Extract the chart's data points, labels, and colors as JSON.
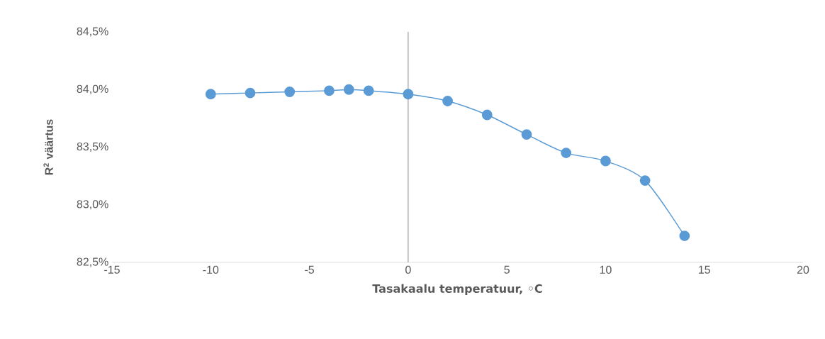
{
  "chart_data": {
    "type": "line",
    "xlabel": "Tasakaalu temperatuur, ◦C",
    "ylabel": "R$^{2}$ väärtus",
    "x": [
      -10,
      -8,
      -6,
      -4,
      -3,
      -2,
      0,
      2,
      4,
      6,
      8,
      10,
      12,
      14
    ],
    "series": [
      {
        "color": "#5b9bd5",
        "values": [
          83.96,
          83.97,
          83.98,
          83.99,
          84.0,
          83.99,
          83.96,
          83.9,
          83.78,
          83.61,
          83.45,
          83.38,
          83.21,
          82.73
        ]
      }
    ],
    "xlim": [
      -15,
      20
    ],
    "xticks": [
      -15,
      -10,
      -5,
      0,
      5,
      10,
      15,
      20
    ],
    "ylim": [
      82.5,
      84.5
    ],
    "yticks": [
      {
        "value": 82.5,
        "label": "82,5%"
      },
      {
        "value": 83.0,
        "label": "83,0%"
      },
      {
        "value": 83.5,
        "label": "83,5%"
      },
      {
        "value": 84.0,
        "label": "84,0%"
      },
      {
        "value": 84.5,
        "label": "84,5%"
      }
    ],
    "ref_lines": [
      {
        "axis": "x",
        "value": 0,
        "color": "#a6a6a6"
      }
    ],
    "marker": "circle",
    "line_style": "solid",
    "grid": false
  }
}
